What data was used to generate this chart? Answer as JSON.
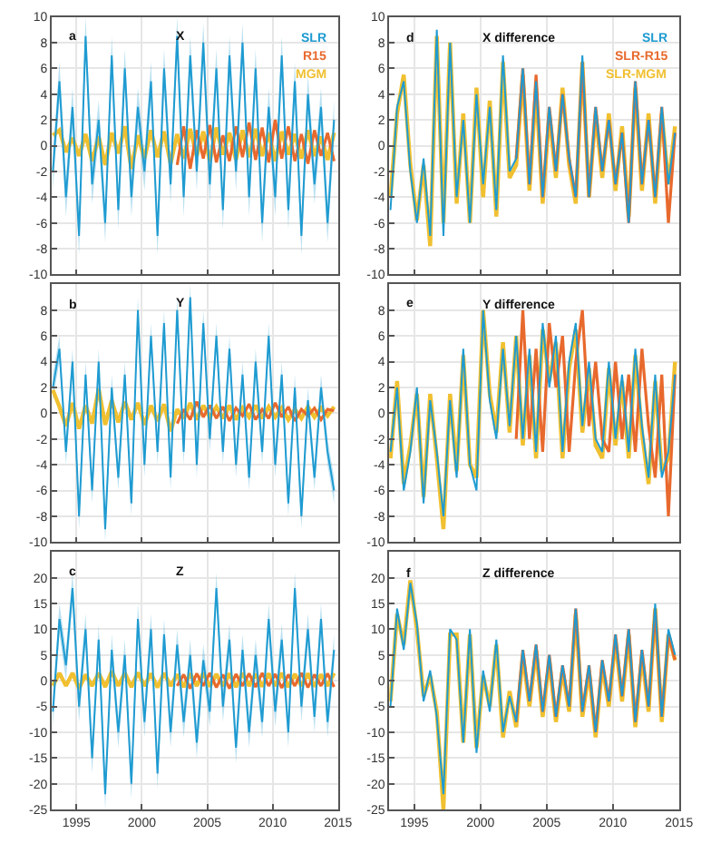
{
  "chart_data": [
    {
      "type": "line",
      "title": "X",
      "annotations": [
        "a"
      ],
      "legend": "top right",
      "grid": true,
      "tick_labels": "y",
      "xlim": [
        1993.1,
        2015
      ],
      "xticks": [
        1995,
        2000,
        2005,
        2010,
        2015
      ],
      "ylim": [
        -10,
        10
      ],
      "yticks": [
        -10,
        -8,
        -6,
        -4,
        -2,
        0,
        2,
        4,
        6,
        8,
        10
      ],
      "x": [
        1993.2,
        1993.7,
        1994.2,
        1994.7,
        1995.2,
        1995.7,
        1996.2,
        1996.7,
        1997.2,
        1997.7,
        1998.2,
        1998.7,
        1999.2,
        1999.7,
        2000.2,
        2000.7,
        2001.2,
        2001.7,
        2002.2,
        2002.7,
        2003.2,
        2003.7,
        2004.2,
        2004.7,
        2005.2,
        2005.7,
        2006.2,
        2006.7,
        2007.2,
        2007.7,
        2008.2,
        2008.7,
        2009.2,
        2009.7,
        2010.2,
        2010.7,
        2011.2,
        2011.7,
        2012.2,
        2012.7,
        2013.2,
        2013.7,
        2014.2,
        2014.7
      ],
      "series": [
        {
          "name": "SLR",
          "color": "#1f9bd1",
          "values": [
            -2,
            5,
            -4,
            3,
            -7,
            8.5,
            -3,
            2,
            -6,
            7,
            -5,
            6,
            -4,
            3,
            -2,
            5,
            -7,
            6,
            -3,
            8.5,
            -4,
            7,
            -2,
            8,
            -3,
            6,
            -5,
            7,
            -2,
            8,
            -4,
            6,
            -6,
            3,
            -4,
            7,
            -5,
            5,
            -7,
            4,
            -3,
            3,
            -6,
            2
          ],
          "lower": [
            -3.5,
            3.5,
            -5.5,
            1.5,
            -8.5,
            7,
            -4.5,
            0.5,
            -7.5,
            5.5,
            -6.5,
            4.5,
            -5.5,
            1.5,
            -3.5,
            3.5,
            -8.5,
            4.5,
            -4.5,
            7,
            -5.5,
            5.5,
            -3.5,
            6.5,
            -4.5,
            4.5,
            -6.5,
            5.5,
            -3.5,
            6.5,
            -5.5,
            4.5,
            -7.5,
            1.5,
            -5.5,
            5.5,
            -6.5,
            3.5,
            -8.5,
            2.5,
            -4.5,
            1.5,
            -7.5,
            0.5
          ],
          "upper": [
            -0.5,
            6.5,
            -2.5,
            4.5,
            -5.5,
            10,
            -1.5,
            3.5,
            -4.5,
            8.5,
            -3.5,
            7.5,
            -2.5,
            4.5,
            -0.5,
            6.5,
            -5.5,
            7.5,
            -1.5,
            10,
            -2.5,
            8.5,
            -0.5,
            9.5,
            -1.5,
            7.5,
            -3.5,
            8.5,
            -0.5,
            9.5,
            -2.5,
            7.5,
            -4.5,
            4.5,
            -2.5,
            8.5,
            -3.5,
            6.5,
            -5.5,
            5.5,
            -1.5,
            4.5,
            -4.5,
            3.5
          ]
        },
        {
          "name": "R15",
          "color": "#e8692d",
          "x": [
            2002.7,
            2003.2,
            2003.7,
            2004.2,
            2004.7,
            2005.2,
            2005.7,
            2006.2,
            2006.7,
            2007.2,
            2007.7,
            2008.2,
            2008.7,
            2009.2,
            2009.7,
            2010.2,
            2010.7,
            2011.2,
            2011.7,
            2012.2,
            2012.7,
            2013.2,
            2013.7,
            2014.2,
            2014.7
          ],
          "values": [
            -1.5,
            1.5,
            -1.8,
            1.2,
            -1.0,
            1.6,
            -1.3,
            0.8,
            -1.2,
            1.5,
            -0.9,
            1.8,
            -1.1,
            1.4,
            -1.3,
            2.0,
            -1.0,
            1.5,
            -1.2,
            0.9,
            -1.4,
            1.2,
            -0.8,
            1.0,
            -1.2
          ]
        },
        {
          "name": "MGM",
          "color": "#f0c030",
          "values": [
            0.8,
            1.2,
            -0.5,
            0.6,
            -0.8,
            0.9,
            -1.2,
            0.7,
            -1.5,
            1.0,
            -0.6,
            1.5,
            -1.8,
            0.8,
            -1.0,
            1.2,
            -0.9,
            1.1,
            -1.4,
            0.9,
            -1.0,
            1.3,
            -0.8,
            1.1,
            -1.2,
            1.4,
            -0.7,
            1.0,
            -1.1,
            1.2,
            -0.9,
            1.3,
            -0.8,
            1.0,
            -1.2,
            1.1,
            -0.7,
            0.9,
            -1.0,
            1.2,
            -0.8,
            0.7,
            -1.1,
            1.0
          ]
        }
      ]
    },
    {
      "type": "line",
      "title": "Y",
      "annotations": [
        "b"
      ],
      "grid": true,
      "tick_labels": "y",
      "xlim": [
        1993.1,
        2015
      ],
      "xticks": [
        1995,
        2000,
        2005,
        2010,
        2015
      ],
      "ylim": [
        -10,
        10
      ],
      "yticks": [
        -10,
        -8,
        -6,
        -4,
        -2,
        0,
        2,
        4,
        6,
        8
      ],
      "x": [
        1993.2,
        1993.7,
        1994.2,
        1994.7,
        1995.2,
        1995.7,
        1996.2,
        1996.7,
        1997.2,
        1997.7,
        1998.2,
        1998.7,
        1999.2,
        1999.7,
        2000.2,
        2000.7,
        2001.2,
        2001.7,
        2002.2,
        2002.7,
        2003.2,
        2003.7,
        2004.2,
        2004.7,
        2005.2,
        2005.7,
        2006.2,
        2006.7,
        2007.2,
        2007.7,
        2008.2,
        2008.7,
        2009.2,
        2009.7,
        2010.2,
        2010.7,
        2011.2,
        2011.7,
        2012.2,
        2012.7,
        2013.2,
        2013.7,
        2014.2,
        2014.7
      ],
      "series": [
        {
          "color": "#1f9bd1",
          "values": [
            2,
            5,
            -3,
            4,
            -8,
            3,
            -6,
            4,
            -9,
            2,
            -5,
            3,
            -7,
            8,
            -4,
            6,
            -3,
            7,
            -5,
            8,
            -3,
            9,
            -4,
            7,
            -2,
            6,
            -3,
            5,
            -4,
            3,
            -5,
            4,
            -3,
            6,
            -4,
            3,
            -7,
            2,
            -8,
            1,
            -5,
            2,
            -3,
            -6
          ],
          "lower": [
            1,
            4,
            -4,
            3,
            -9,
            2,
            -7,
            3,
            -10,
            1,
            -6,
            2,
            -8,
            7,
            -5,
            5,
            -4,
            6,
            -6,
            7,
            -4,
            8,
            -5,
            6,
            -3,
            5,
            -4,
            4,
            -5,
            2,
            -6,
            3,
            -4,
            5,
            -5,
            2,
            -8,
            1,
            -9,
            0,
            -6,
            1,
            -4,
            -7
          ],
          "upper": [
            3,
            6,
            -2,
            5,
            -7,
            4,
            -5,
            5,
            -8,
            3,
            -4,
            4,
            -6,
            9,
            -3,
            7,
            -2,
            8,
            -4,
            9,
            -2,
            10,
            -3,
            8,
            -1,
            7,
            -2,
            6,
            -3,
            4,
            -4,
            5,
            -2,
            7,
            -3,
            4,
            -6,
            3,
            -7,
            2,
            -4,
            3,
            -2,
            -5
          ]
        },
        {
          "color": "#e8692d",
          "x": [
            2002.7,
            2003.2,
            2003.7,
            2004.2,
            2004.7,
            2005.2,
            2005.7,
            2006.2,
            2006.7,
            2007.2,
            2007.7,
            2008.2,
            2008.7,
            2009.2,
            2009.7,
            2010.2,
            2010.7,
            2011.2,
            2011.7,
            2012.2,
            2012.7,
            2013.2,
            2013.7,
            2014.2,
            2014.7
          ],
          "values": [
            -0.8,
            0.3,
            -0.5,
            0.9,
            -0.3,
            0.6,
            -0.4,
            0.5,
            -0.6,
            0.4,
            -0.2,
            0.7,
            -0.5,
            0.3,
            -0.4,
            0.8,
            -0.3,
            0.5,
            -0.6,
            0.3,
            -0.2,
            0.4,
            -0.5,
            0.3,
            0.2
          ]
        },
        {
          "color": "#f0c030",
          "values": [
            1.8,
            0.5,
            -1.0,
            0.8,
            -1.2,
            0.6,
            -0.8,
            1.9,
            -0.9,
            1.0,
            -0.7,
            0.9,
            -0.5,
            0.8,
            -0.9,
            0.6,
            -0.6,
            0.7,
            -1.4,
            0.3,
            -0.4,
            0.8,
            -0.5,
            0.6,
            -0.3,
            0.5,
            -0.4,
            0.6,
            -0.5,
            0.4,
            -0.3,
            0.6,
            -0.4,
            0.5,
            -0.3,
            0.4,
            -0.5,
            0.3,
            -0.4,
            0.5,
            -0.3,
            0.4,
            -0.2,
            0.5
          ]
        }
      ]
    },
    {
      "type": "line",
      "title": "Z",
      "annotations": [
        "c"
      ],
      "grid": true,
      "xlim": [
        1993.1,
        2015
      ],
      "xticks": [
        1995,
        2000,
        2005,
        2010,
        {
          "value": 2015,
          "label": "2015"
        }
      ],
      "ylim": [
        -25,
        25
      ],
      "yticks": [
        -25,
        -20,
        -15,
        -10,
        -5,
        0,
        5,
        10,
        15,
        20
      ],
      "x": [
        1993.2,
        1993.7,
        1994.2,
        1994.7,
        1995.2,
        1995.7,
        1996.2,
        1996.7,
        1997.2,
        1997.7,
        1998.2,
        1998.7,
        1999.2,
        1999.7,
        2000.2,
        2000.7,
        2001.2,
        2001.7,
        2002.2,
        2002.7,
        2003.2,
        2003.7,
        2004.2,
        2004.7,
        2005.2,
        2005.7,
        2006.2,
        2006.7,
        2007.2,
        2007.7,
        2008.2,
        2008.7,
        2009.2,
        2009.7,
        2010.2,
        2010.7,
        2011.2,
        2011.7,
        2012.2,
        2012.7,
        2013.2,
        2013.7,
        2014.2,
        2014.7
      ],
      "series": [
        {
          "color": "#1f9bd1",
          "values": [
            -6,
            12,
            3,
            18,
            -5,
            10,
            -15,
            8,
            -22,
            6,
            -10,
            5,
            -20,
            12,
            -8,
            10,
            -18,
            9,
            -10,
            7,
            -8,
            5,
            -12,
            4,
            -6,
            18,
            -5,
            8,
            -13,
            6,
            -10,
            5,
            -8,
            12,
            -6,
            8,
            -10,
            18,
            -5,
            10,
            -7,
            12,
            -8,
            6
          ],
          "lower": [
            -9,
            9,
            0,
            15,
            -8,
            7,
            -18,
            5,
            -25,
            3,
            -13,
            2,
            -23,
            9,
            -11,
            7,
            -21,
            6,
            -13,
            4,
            -11,
            2,
            -15,
            1,
            -9,
            15,
            -8,
            5,
            -16,
            3,
            -13,
            2,
            -11,
            9,
            -9,
            5,
            -13,
            15,
            -8,
            7,
            -10,
            9,
            -11,
            3
          ],
          "upper": [
            -3,
            15,
            6,
            21,
            -2,
            13,
            -12,
            11,
            -19,
            9,
            -7,
            8,
            -17,
            15,
            -5,
            13,
            -15,
            12,
            -7,
            10,
            -5,
            8,
            -9,
            7,
            -3,
            21,
            -2,
            11,
            -10,
            9,
            -7,
            8,
            -5,
            15,
            -3,
            11,
            -7,
            21,
            -2,
            13,
            -4,
            15,
            -5,
            9
          ]
        },
        {
          "color": "#e8692d",
          "x": [
            2002.7,
            2003.2,
            2003.7,
            2004.2,
            2004.7,
            2005.2,
            2005.7,
            2006.2,
            2006.7,
            2007.2,
            2007.7,
            2008.2,
            2008.7,
            2009.2,
            2009.7,
            2010.2,
            2010.7,
            2011.2,
            2011.7,
            2012.2,
            2012.7,
            2013.2,
            2013.7,
            2014.2,
            2014.7
          ],
          "values": [
            -1,
            1.2,
            -1.5,
            1.4,
            -1,
            1.5,
            -1.3,
            1.2,
            -1.5,
            1.3,
            -1,
            1.4,
            -1.2,
            1.5,
            -1,
            1.3,
            -1.4,
            1.2,
            -1,
            1.5,
            -1.3,
            1.2,
            -1,
            1.4,
            -1.2
          ]
        },
        {
          "color": "#f0c030",
          "values": [
            -1,
            1.5,
            -1,
            1.5,
            -1.5,
            1.2,
            -1,
            1.5,
            -1.2,
            1.8,
            -1,
            1.5,
            -1.2,
            1.6,
            -1,
            1.4,
            -1.3,
            1.5,
            -1,
            1.2,
            -1.2,
            1.4,
            -1,
            1.5,
            -1.1,
            1.3,
            -1,
            1.4,
            -1.2,
            1.5,
            -1,
            1.3,
            -1.1,
            1.4,
            -1,
            1.5,
            -1.2,
            1.3,
            -1,
            1.4,
            -1.1,
            1.2,
            -1,
            1.5
          ]
        }
      ]
    },
    {
      "type": "line",
      "title": "X difference",
      "annotations": [
        "d"
      ],
      "legend": "top right",
      "grid": true,
      "tick_labels": "y",
      "xlim": [
        1993.1,
        2015
      ],
      "xticks": [
        1995,
        2000,
        2005,
        2010,
        2015
      ],
      "ylim": [
        -10,
        10
      ],
      "yticks": [
        -10,
        -8,
        -6,
        -4,
        -2,
        0,
        2,
        4,
        6,
        8,
        10
      ],
      "x": [
        1993.2,
        1993.7,
        1994.2,
        1994.7,
        1995.2,
        1995.7,
        1996.2,
        1996.7,
        1997.2,
        1997.7,
        1998.2,
        1998.7,
        1999.2,
        1999.7,
        2000.2,
        2000.7,
        2001.2,
        2001.7,
        2002.2,
        2002.7,
        2003.2,
        2003.7,
        2004.2,
        2004.7,
        2005.2,
        2005.7,
        2006.2,
        2006.7,
        2007.2,
        2007.7,
        2008.2,
        2008.7,
        2009.2,
        2009.7,
        2010.2,
        2010.7,
        2011.2,
        2011.7,
        2012.2,
        2012.7,
        2013.2,
        2013.7,
        2014.2,
        2014.7
      ],
      "series": [
        {
          "name": "SLR",
          "color": "#1f9bd1",
          "values": [
            -5,
            3,
            5,
            -2,
            -6,
            -1,
            -7,
            9,
            -7,
            8,
            -4,
            2,
            -6,
            4,
            -3,
            3,
            -5,
            7,
            -2,
            -1,
            6,
            -3,
            5,
            -4,
            3,
            -2,
            4,
            -1,
            -4,
            7,
            -4,
            3,
            -2,
            2,
            -3,
            1,
            -6,
            5,
            -3,
            2,
            -4,
            3,
            -3,
            1
          ]
        },
        {
          "name": "SLR-R15",
          "color": "#e8692d",
          "x": [
            2002.7,
            2003.2,
            2003.7,
            2004.2,
            2004.7,
            2005.2,
            2005.7,
            2006.2,
            2006.7,
            2007.2,
            2007.7,
            2008.2,
            2008.7,
            2009.2,
            2009.7,
            2010.2,
            2010.7,
            2011.2,
            2011.7,
            2012.2,
            2012.7,
            2013.2,
            2013.7,
            2014.2,
            2014.7
          ],
          "values": [
            -1,
            6,
            -3,
            5.5,
            -4,
            3,
            -2,
            4,
            -1,
            -4,
            6.5,
            -4,
            3,
            -2,
            2,
            -3,
            1,
            -6,
            5,
            -3,
            2,
            -4,
            3,
            -6,
            1
          ]
        },
        {
          "name": "SLR-MGM",
          "color": "#f0c030",
          "values": [
            -4,
            2.5,
            5.5,
            -1.5,
            -5.8,
            -1.5,
            -7.8,
            8.5,
            -6,
            8,
            -4.5,
            2.5,
            -6,
            4.5,
            -4,
            3.5,
            -5.5,
            6.5,
            -2.5,
            -1.5,
            5.5,
            -3.5,
            4.5,
            -4.5,
            2.5,
            -2.5,
            4.5,
            -1.5,
            -4.5,
            6.5,
            -4,
            2.5,
            -2.5,
            2.5,
            -3.5,
            1.5,
            -5.5,
            4.5,
            -3.5,
            2.5,
            -4.5,
            2.5,
            -3,
            1.5
          ]
        }
      ]
    },
    {
      "type": "line",
      "title": "Y difference",
      "annotations": [
        "e"
      ],
      "grid": true,
      "tick_labels": "y",
      "xlim": [
        1993.1,
        2015
      ],
      "xticks": [
        1995,
        2000,
        2005,
        2010,
        2015
      ],
      "ylim": [
        -10,
        10
      ],
      "yticks": [
        -10,
        -8,
        -6,
        -4,
        -2,
        0,
        2,
        4,
        6,
        8
      ],
      "x": [
        1993.2,
        1993.7,
        1994.2,
        1994.7,
        1995.2,
        1995.7,
        1996.2,
        1996.7,
        1997.2,
        1997.7,
        1998.2,
        1998.7,
        1999.2,
        1999.7,
        2000.2,
        2000.7,
        2001.2,
        2001.7,
        2002.2,
        2002.7,
        2003.2,
        2003.7,
        2004.2,
        2004.7,
        2005.2,
        2005.7,
        2006.2,
        2006.7,
        2007.2,
        2007.7,
        2008.2,
        2008.7,
        2009.2,
        2009.7,
        2010.2,
        2010.7,
        2011.2,
        2011.7,
        2012.2,
        2012.7,
        2013.2,
        2013.7,
        2014.2,
        2014.7
      ],
      "series": [
        {
          "color": "#1f9bd1",
          "values": [
            -3,
            2,
            -6,
            -3,
            2,
            -7,
            1,
            -3,
            -8,
            1,
            -5,
            5,
            -4,
            -6,
            8,
            1,
            -2,
            5,
            -1,
            6,
            -2,
            5,
            -3,
            7,
            2,
            6,
            -3,
            4,
            7,
            -1,
            4,
            -2,
            -3,
            4,
            -2,
            3,
            -3,
            5,
            -1,
            -5,
            3,
            -5,
            -3,
            3
          ]
        },
        {
          "color": "#e8692d",
          "x": [
            2002.7,
            2003.2,
            2003.7,
            2004.2,
            2004.7,
            2005.2,
            2005.7,
            2006.2,
            2006.7,
            2007.2,
            2007.7,
            2008.2,
            2008.7,
            2009.2,
            2009.7,
            2010.2,
            2010.7,
            2011.2,
            2011.7,
            2012.2,
            2012.7,
            2013.2,
            2013.7,
            2014.2,
            2014.7
          ],
          "values": [
            -2,
            8,
            -2,
            5,
            -3,
            7,
            2,
            6,
            -3,
            4,
            8,
            -1,
            4,
            -2,
            -3,
            4,
            -2,
            3,
            -3,
            5,
            -1,
            -5,
            3,
            -8,
            3
          ]
        },
        {
          "color": "#f0c030",
          "values": [
            -3.5,
            2.5,
            -5.5,
            -2.5,
            1.5,
            -6.5,
            1.5,
            -3.5,
            -9,
            1.5,
            -4.5,
            4.5,
            -4,
            -5,
            8,
            1.5,
            -1.5,
            5.5,
            -1.5,
            6,
            -2.5,
            4.5,
            -3.5,
            6.5,
            2.5,
            5.5,
            -3.5,
            3.5,
            6.5,
            -1.5,
            3.5,
            -2.5,
            -3.5,
            3.5,
            -2.5,
            2.5,
            -3.5,
            4.5,
            -1.5,
            -5.5,
            2.5,
            -4.5,
            -3.5,
            4
          ]
        }
      ]
    },
    {
      "type": "line",
      "title": "Z difference",
      "annotations": [
        "f"
      ],
      "grid": true,
      "xlim": [
        1993.1,
        2015
      ],
      "xticks": [
        1995,
        2000,
        2005,
        2010,
        2015
      ],
      "ylim": [
        -25,
        25
      ],
      "yticks": [
        -25,
        -20,
        -15,
        -10,
        -5,
        0,
        5,
        10,
        15,
        20
      ],
      "x": [
        1993.2,
        1993.7,
        1994.2,
        1994.7,
        1995.2,
        1995.7,
        1996.2,
        1996.7,
        1997.2,
        1997.7,
        1998.2,
        1998.7,
        1999.2,
        1999.7,
        2000.2,
        2000.7,
        2001.2,
        2001.7,
        2002.2,
        2002.7,
        2003.2,
        2003.7,
        2004.2,
        2004.7,
        2005.2,
        2005.7,
        2006.2,
        2006.7,
        2007.2,
        2007.7,
        2008.2,
        2008.7,
        2009.2,
        2009.7,
        2010.2,
        2010.7,
        2011.2,
        2011.7,
        2012.2,
        2012.7,
        2013.2,
        2013.7,
        2014.2,
        2014.7
      ],
      "series": [
        {
          "color": "#1f9bd1",
          "values": [
            -5,
            14,
            6,
            19,
            11,
            -4,
            2,
            -7,
            -22,
            10,
            8,
            -12,
            10,
            -14,
            2,
            -6,
            8,
            -10,
            -3,
            -8,
            6,
            -4,
            7,
            -6,
            5,
            -7,
            3,
            -5,
            14,
            -6,
            3,
            -10,
            4,
            -4,
            9,
            -3,
            10,
            -8,
            6,
            -5,
            15,
            -7,
            10,
            5
          ]
        },
        {
          "color": "#e8692d",
          "x": [
            2002.7,
            2003.2,
            2003.7,
            2004.2,
            2004.7,
            2005.2,
            2005.7,
            2006.2,
            2006.7,
            2007.2,
            2007.7,
            2008.2,
            2008.7,
            2009.2,
            2009.7,
            2010.2,
            2010.7,
            2011.2,
            2011.7,
            2012.2,
            2012.7,
            2013.2,
            2013.7,
            2014.2,
            2014.7
          ],
          "values": [
            -8,
            6,
            -4,
            7,
            -6,
            5,
            -7,
            3,
            -5,
            14,
            -6,
            3,
            -10,
            4,
            -4,
            9,
            -3,
            10,
            -8,
            6,
            -5,
            14,
            -7,
            9,
            4
          ]
        },
        {
          "color": "#f0c030",
          "values": [
            -4,
            13,
            7,
            19.5,
            10,
            -3,
            1,
            -6,
            -25,
            9,
            9,
            -12,
            9,
            -13,
            1,
            -5,
            7,
            -11,
            -2,
            -9,
            5,
            -5,
            6,
            -7,
            4,
            -8,
            2,
            -6,
            13,
            -7,
            2,
            -11,
            3,
            -5,
            8,
            -4,
            9,
            -9,
            5,
            -6,
            14,
            -8,
            9,
            4
          ]
        }
      ]
    }
  ]
}
